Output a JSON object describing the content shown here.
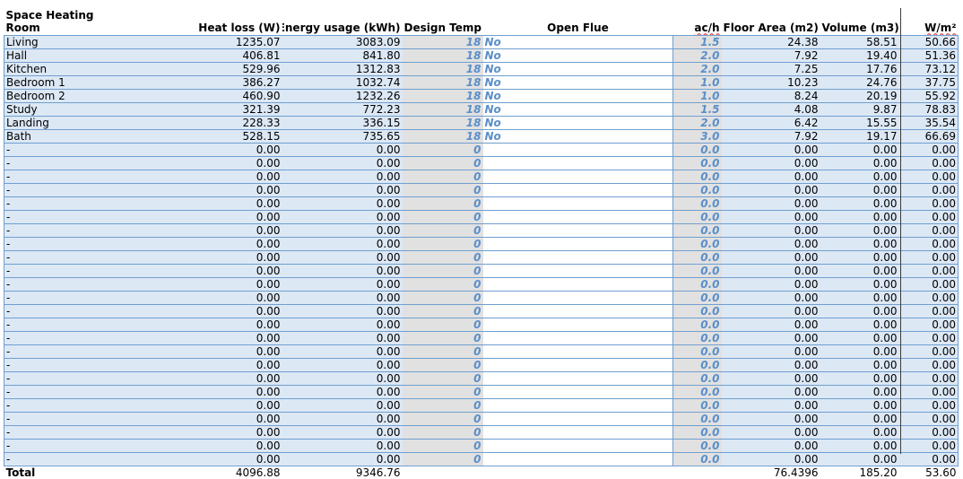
{
  "sheet": {
    "title": "Space Heating",
    "columns": {
      "room": "Room",
      "heat_loss": "Heat loss (W)",
      "energy": "Energy usage (kWh)",
      "design_temp": "Design Temp",
      "open_flue": "Open Flue",
      "ach": "ac/h",
      "floor_area": "Floor Area (m2)",
      "volume": "Volume (m3)",
      "wm2": "W/m²"
    },
    "rows": [
      {
        "room": "Living",
        "heat_loss": "1235.07",
        "energy": "3083.09",
        "temp": "18",
        "flue": "No",
        "ach": "1.5",
        "area": "24.38",
        "volume": "58.51",
        "wm2": "50.66"
      },
      {
        "room": "Hall",
        "heat_loss": "406.81",
        "energy": "841.80",
        "temp": "18",
        "flue": "No",
        "ach": "2.0",
        "area": "7.92",
        "volume": "19.40",
        "wm2": "51.36"
      },
      {
        "room": "Kitchen",
        "heat_loss": "529.96",
        "energy": "1312.83",
        "temp": "18",
        "flue": "No",
        "ach": "2.0",
        "area": "7.25",
        "volume": "17.76",
        "wm2": "73.12"
      },
      {
        "room": "Bedroom 1",
        "heat_loss": "386.27",
        "energy": "1032.74",
        "temp": "18",
        "flue": "No",
        "ach": "1.0",
        "area": "10.23",
        "volume": "24.76",
        "wm2": "37.75"
      },
      {
        "room": "Bedroom 2",
        "heat_loss": "460.90",
        "energy": "1232.26",
        "temp": "18",
        "flue": "No",
        "ach": "1.0",
        "area": "8.24",
        "volume": "20.19",
        "wm2": "55.92"
      },
      {
        "room": "Study",
        "heat_loss": "321.39",
        "energy": "772.23",
        "temp": "18",
        "flue": "No",
        "ach": "1.5",
        "area": "4.08",
        "volume": "9.87",
        "wm2": "78.83"
      },
      {
        "room": "Landing",
        "heat_loss": "228.33",
        "energy": "336.15",
        "temp": "18",
        "flue": "No",
        "ach": "2.0",
        "area": "6.42",
        "volume": "15.55",
        "wm2": "35.54"
      },
      {
        "room": "Bath",
        "heat_loss": "528.15",
        "energy": "735.65",
        "temp": "18",
        "flue": "No",
        "ach": "3.0",
        "area": "7.92",
        "volume": "19.17",
        "wm2": "66.69"
      },
      {
        "room": "-",
        "heat_loss": "0.00",
        "energy": "0.00",
        "temp": "0",
        "flue": "",
        "ach": "0.0",
        "area": "0.00",
        "volume": "0.00",
        "wm2": "0.00"
      },
      {
        "room": "-",
        "heat_loss": "0.00",
        "energy": "0.00",
        "temp": "0",
        "flue": "",
        "ach": "0.0",
        "area": "0.00",
        "volume": "0.00",
        "wm2": "0.00"
      },
      {
        "room": "-",
        "heat_loss": "0.00",
        "energy": "0.00",
        "temp": "0",
        "flue": "",
        "ach": "0.0",
        "area": "0.00",
        "volume": "0.00",
        "wm2": "0.00"
      },
      {
        "room": "-",
        "heat_loss": "0.00",
        "energy": "0.00",
        "temp": "0",
        "flue": "",
        "ach": "0.0",
        "area": "0.00",
        "volume": "0.00",
        "wm2": "0.00"
      },
      {
        "room": "-",
        "heat_loss": "0.00",
        "energy": "0.00",
        "temp": "0",
        "flue": "",
        "ach": "0.0",
        "area": "0.00",
        "volume": "0.00",
        "wm2": "0.00"
      },
      {
        "room": "-",
        "heat_loss": "0.00",
        "energy": "0.00",
        "temp": "0",
        "flue": "",
        "ach": "0.0",
        "area": "0.00",
        "volume": "0.00",
        "wm2": "0.00"
      },
      {
        "room": "-",
        "heat_loss": "0.00",
        "energy": "0.00",
        "temp": "0",
        "flue": "",
        "ach": "0.0",
        "area": "0.00",
        "volume": "0.00",
        "wm2": "0.00"
      },
      {
        "room": "-",
        "heat_loss": "0.00",
        "energy": "0.00",
        "temp": "0",
        "flue": "",
        "ach": "0.0",
        "area": "0.00",
        "volume": "0.00",
        "wm2": "0.00"
      },
      {
        "room": "-",
        "heat_loss": "0.00",
        "energy": "0.00",
        "temp": "0",
        "flue": "",
        "ach": "0.0",
        "area": "0.00",
        "volume": "0.00",
        "wm2": "0.00"
      },
      {
        "room": "-",
        "heat_loss": "0.00",
        "energy": "0.00",
        "temp": "0",
        "flue": "",
        "ach": "0.0",
        "area": "0.00",
        "volume": "0.00",
        "wm2": "0.00"
      },
      {
        "room": "-",
        "heat_loss": "0.00",
        "energy": "0.00",
        "temp": "0",
        "flue": "",
        "ach": "0.0",
        "area": "0.00",
        "volume": "0.00",
        "wm2": "0.00"
      },
      {
        "room": "-",
        "heat_loss": "0.00",
        "energy": "0.00",
        "temp": "0",
        "flue": "",
        "ach": "0.0",
        "area": "0.00",
        "volume": "0.00",
        "wm2": "0.00"
      },
      {
        "room": "-",
        "heat_loss": "0.00",
        "energy": "0.00",
        "temp": "0",
        "flue": "",
        "ach": "0.0",
        "area": "0.00",
        "volume": "0.00",
        "wm2": "0.00"
      },
      {
        "room": "-",
        "heat_loss": "0.00",
        "energy": "0.00",
        "temp": "0",
        "flue": "",
        "ach": "0.0",
        "area": "0.00",
        "volume": "0.00",
        "wm2": "0.00"
      },
      {
        "room": "-",
        "heat_loss": "0.00",
        "energy": "0.00",
        "temp": "0",
        "flue": "",
        "ach": "0.0",
        "area": "0.00",
        "volume": "0.00",
        "wm2": "0.00"
      },
      {
        "room": "-",
        "heat_loss": "0.00",
        "energy": "0.00",
        "temp": "0",
        "flue": "",
        "ach": "0.0",
        "area": "0.00",
        "volume": "0.00",
        "wm2": "0.00"
      },
      {
        "room": "-",
        "heat_loss": "0.00",
        "energy": "0.00",
        "temp": "0",
        "flue": "",
        "ach": "0.0",
        "area": "0.00",
        "volume": "0.00",
        "wm2": "0.00"
      },
      {
        "room": "-",
        "heat_loss": "0.00",
        "energy": "0.00",
        "temp": "0",
        "flue": "",
        "ach": "0.0",
        "area": "0.00",
        "volume": "0.00",
        "wm2": "0.00"
      },
      {
        "room": "-",
        "heat_loss": "0.00",
        "energy": "0.00",
        "temp": "0",
        "flue": "",
        "ach": "0.0",
        "area": "0.00",
        "volume": "0.00",
        "wm2": "0.00"
      },
      {
        "room": "-",
        "heat_loss": "0.00",
        "energy": "0.00",
        "temp": "0",
        "flue": "",
        "ach": "0.0",
        "area": "0.00",
        "volume": "0.00",
        "wm2": "0.00"
      },
      {
        "room": "-",
        "heat_loss": "0.00",
        "energy": "0.00",
        "temp": "0",
        "flue": "",
        "ach": "0.0",
        "area": "0.00",
        "volume": "0.00",
        "wm2": "0.00"
      },
      {
        "room": "-",
        "heat_loss": "0.00",
        "energy": "0.00",
        "temp": "0",
        "flue": "",
        "ach": "0.0",
        "area": "0.00",
        "volume": "0.00",
        "wm2": "0.00"
      },
      {
        "room": "-",
        "heat_loss": "0.00",
        "energy": "0.00",
        "temp": "0",
        "flue": "",
        "ach": "0.0",
        "area": "0.00",
        "volume": "0.00",
        "wm2": "0.00"
      },
      {
        "room": "-",
        "heat_loss": "0.00",
        "energy": "0.00",
        "temp": "0",
        "flue": "",
        "ach": "0.0",
        "area": "0.00",
        "volume": "0.00",
        "wm2": "0.00"
      }
    ],
    "total": {
      "label": "Total",
      "heat_loss": "4096.88",
      "energy": "9346.76",
      "area": "76.4396",
      "volume": "185.20",
      "wm2": "53.60"
    }
  }
}
